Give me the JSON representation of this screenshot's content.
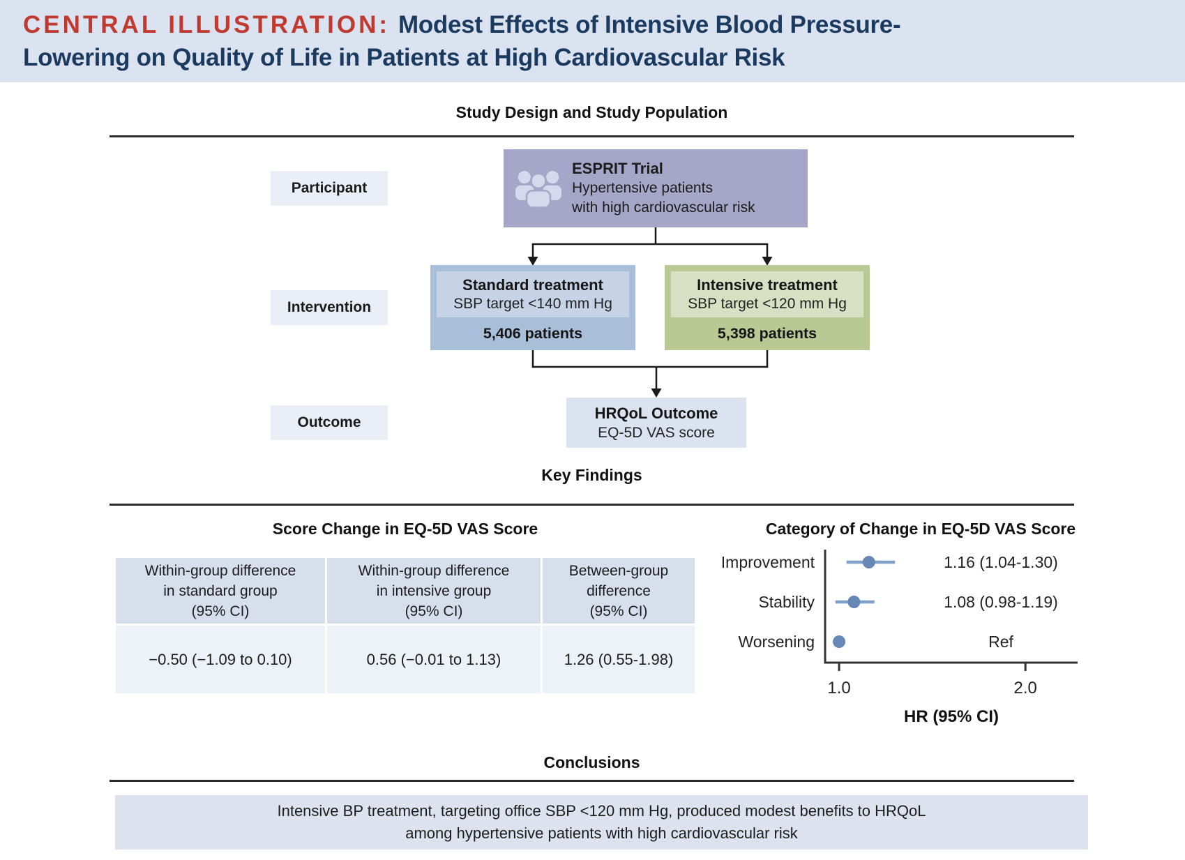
{
  "header": {
    "prefix": "CENTRAL ILLUSTRATION:",
    "title_line1": "Modest Effects of Intensive Blood Pressure-",
    "title_line2": "Lowering on Quality of Life in Patients at High Cardiovascular Risk"
  },
  "sections": {
    "study_heading": "Study Design and Study Population",
    "key_heading": "Key Findings",
    "conclusions_heading": "Conclusions"
  },
  "flowchart": {
    "labels": {
      "participant": "Participant",
      "intervention": "Intervention",
      "outcome": "Outcome"
    },
    "esprit": {
      "icon": "people-group-icon",
      "title": "ESPRIT Trial",
      "line1": "Hypertensive patients",
      "line2": "with high cardiovascular risk"
    },
    "standard": {
      "title": "Standard treatment",
      "target": "SBP target <140 mm Hg",
      "patients": "5,406 patients"
    },
    "intensive": {
      "title": "Intensive treatment",
      "target": "SBP target <120 mm Hg",
      "patients": "5,398 patients"
    },
    "hrqol": {
      "title": "HRQoL Outcome",
      "subtitle": "EQ-5D VAS score"
    }
  },
  "score_table": {
    "title": "Score Change in EQ-5D VAS Score",
    "headers": [
      "Within-group difference\nin standard group\n(95% CI)",
      "Within-group difference\nin intensive group\n(95% CI)",
      "Between-group\ndifference\n(95% CI)"
    ],
    "values": [
      "−0.50 (−1.09 to 0.10)",
      "0.56 (−0.01 to 1.13)",
      "1.26 (0.55-1.98)"
    ]
  },
  "chart_data": {
    "type": "scatter",
    "variant": "forest-plot",
    "title": "Category of Change in EQ-5D VAS Score",
    "xlabel": "HR (95% CI)",
    "categories": [
      "Improvement",
      "Stability",
      "Worsening"
    ],
    "rows": [
      {
        "label": "Improvement",
        "hr": 1.16,
        "ci_low": 1.04,
        "ci_high": 1.3,
        "value_label": "1.16 (1.04-1.30)"
      },
      {
        "label": "Stability",
        "hr": 1.08,
        "ci_low": 0.98,
        "ci_high": 1.19,
        "value_label": "1.08 (0.98-1.19)"
      },
      {
        "label": "Worsening",
        "hr": 1.0,
        "ci_low": null,
        "ci_high": null,
        "value_label": "Ref"
      }
    ],
    "ticks": [
      1.0,
      2.0
    ],
    "tick_labels": [
      "1.0",
      "2.0"
    ],
    "xlim": [
      0.925,
      2.28
    ],
    "grid": false,
    "legend": "none",
    "point_color": "#6787b7",
    "line_color": "#7fa0c8"
  },
  "conclusion": {
    "text": "Intensive BP treatment, targeting office SBP <120 mm Hg, produced modest benefits to HRQoL\namong hypertensive patients with high cardiovascular risk"
  },
  "colors": {
    "header_bg": "#dbe2f0",
    "accent_red": "#c13a30",
    "title_navy": "#1b3a5f",
    "row_label_bg": "#e9eef7",
    "esprit_bg": "#a5a6c8",
    "standard_bg": "#a9bed9",
    "standard_inner_bg": "#c6d3e7",
    "intensive_bg": "#b9c993",
    "intensive_inner_bg": "#d7e0c3",
    "hrqol_bg": "#dce3f0",
    "table_header_bg": "#d8dfec",
    "table_row_bg": "#edf1f8",
    "conclusion_bg": "#dce2ee",
    "forest_point": "#6787b7",
    "forest_ci_line": "#7fa0c8"
  }
}
